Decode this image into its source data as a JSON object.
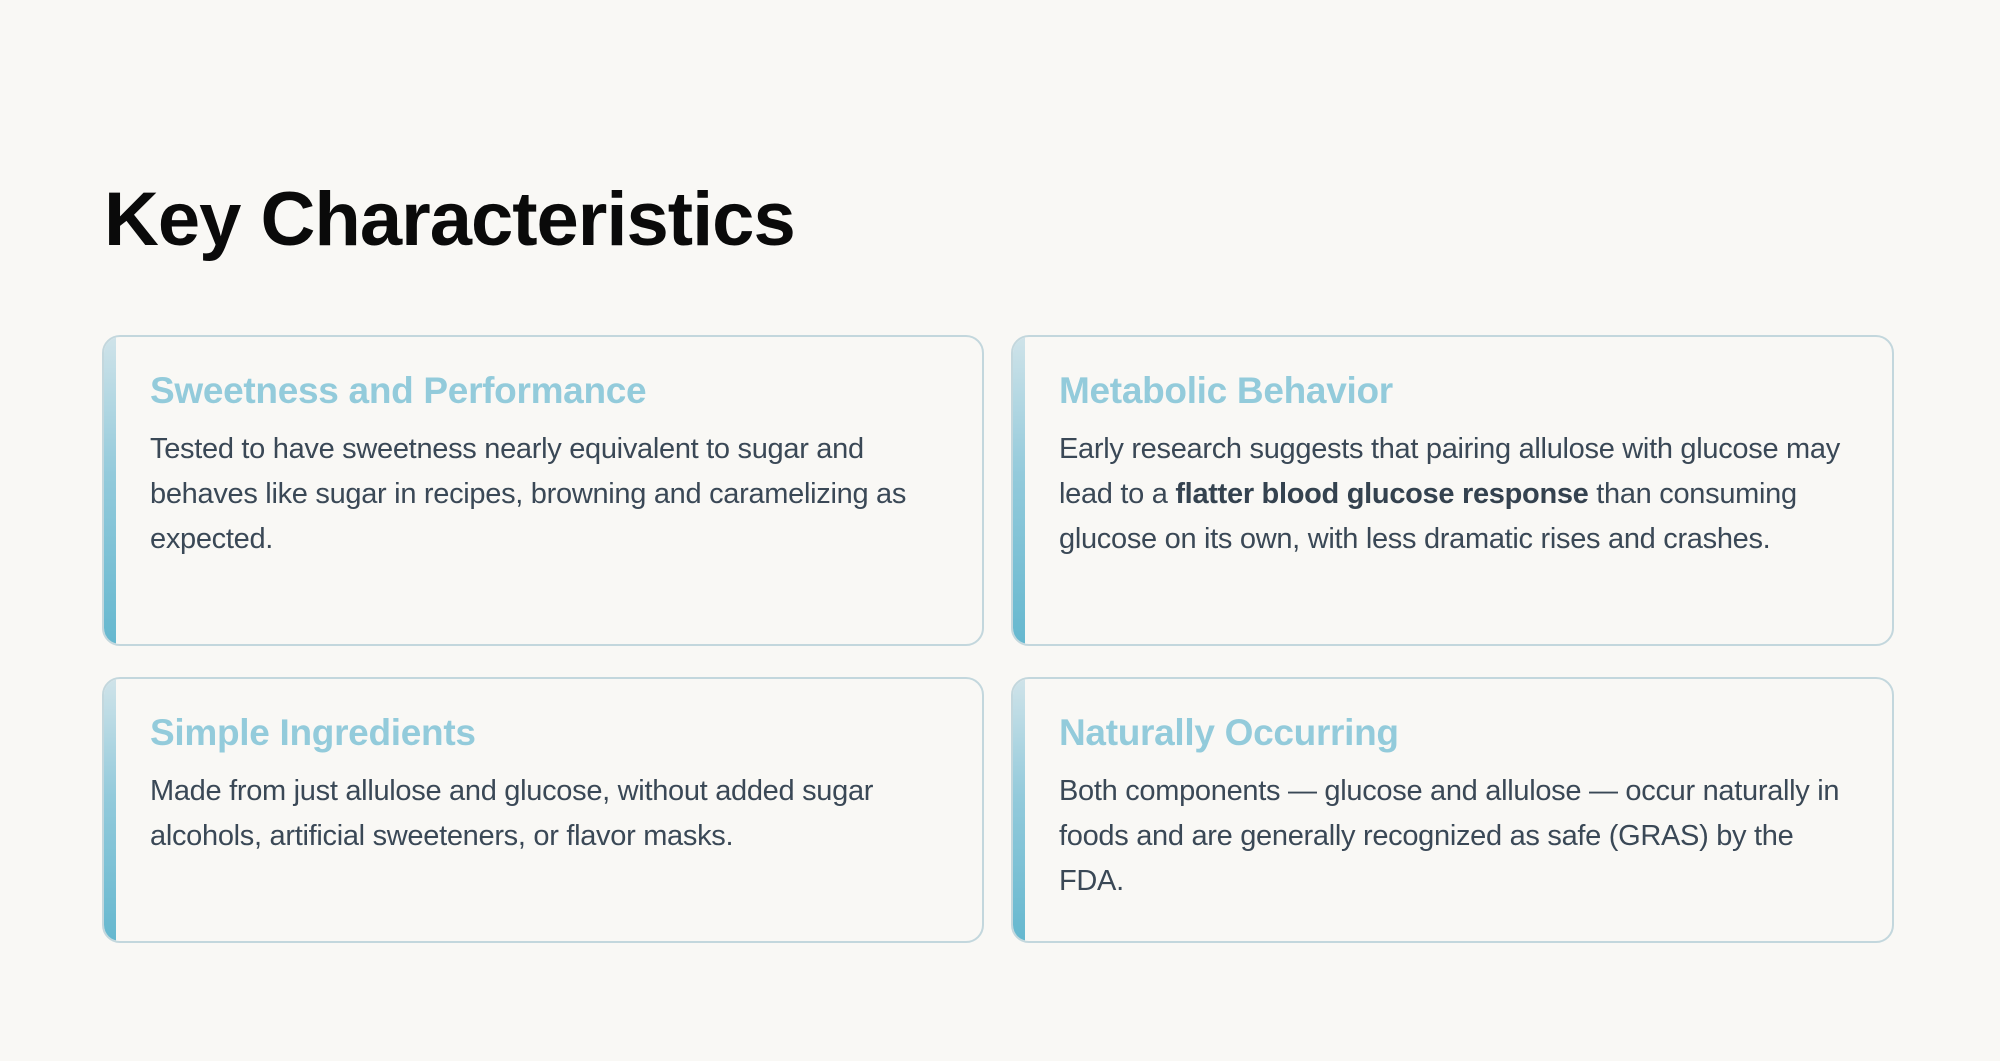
{
  "page": {
    "title": "Key Characteristics"
  },
  "colors": {
    "background": "#f9f8f5",
    "accent": "#93cbdb",
    "accent_bar_bottom": "#66b8cf",
    "card_border": "#c3d7dd",
    "body_text": "#3a4856"
  },
  "cards": [
    {
      "title": "Sweetness and Performance",
      "body": "Tested to have sweetness nearly equivalent to sugar and behaves like sugar in recipes, browning and caramelizing as expected."
    },
    {
      "title": "Metabolic Behavior",
      "body_before": "Early research suggests that pairing allulose with glucose may lead to a ",
      "body_bold": "flatter blood glucose response",
      "body_after": " than consuming glucose on its own, with less dramatic rises and crashes."
    },
    {
      "title": "Simple Ingredients",
      "body": "Made from just allulose and glucose, without added sugar alcohols, artificial sweeteners, or flavor masks."
    },
    {
      "title": "Naturally Occurring",
      "body": "Both components — glucose and allulose — occur naturally in foods and are generally recognized as safe (GRAS) by the FDA."
    }
  ]
}
